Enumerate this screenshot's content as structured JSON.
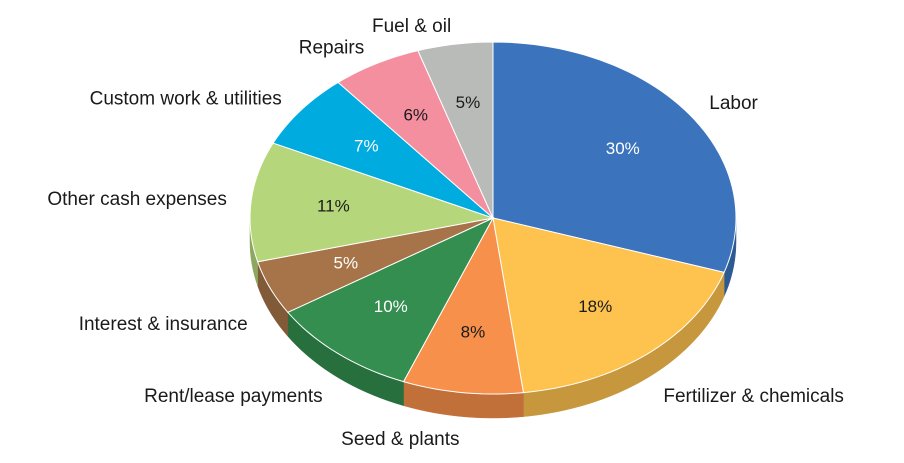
{
  "chart_data": {
    "type": "pie3d",
    "categories": [
      "Labor",
      "Fertilizer & chemicals",
      "Seed & plants",
      "Rent/lease payments",
      "Interest & insurance",
      "Other cash expenses",
      "Custom work & utilities",
      "Repairs",
      "Fuel & oil"
    ],
    "values": [
      30,
      18,
      8,
      10,
      5,
      11,
      7,
      6,
      5
    ],
    "value_labels": [
      "30%",
      "18%",
      "8%",
      "10%",
      "5%",
      "11%",
      "7%",
      "6%",
      "5%"
    ],
    "colors": [
      "#3b74bd",
      "#fec24e",
      "#f7904a",
      "#338e4f",
      "#a67448",
      "#b5d67a",
      "#00abe0",
      "#f48fa0",
      "#b9bbb8"
    ]
  }
}
